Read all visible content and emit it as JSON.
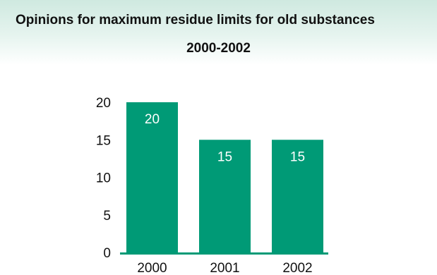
{
  "chart_data": {
    "type": "bar",
    "title": "Opinions for maximum residue limits for old substances",
    "subtitle": "2000-2002",
    "categories": [
      "2000",
      "2001",
      "2002"
    ],
    "values": [
      20,
      15,
      15
    ],
    "data_labels": [
      "20",
      "15",
      "15"
    ],
    "y_ticks": [
      0,
      5,
      10,
      15,
      20
    ],
    "ylim": [
      0,
      20
    ],
    "bar_color": "#009a76",
    "axis_color": "#009a76",
    "grid": false,
    "legend": "none"
  }
}
